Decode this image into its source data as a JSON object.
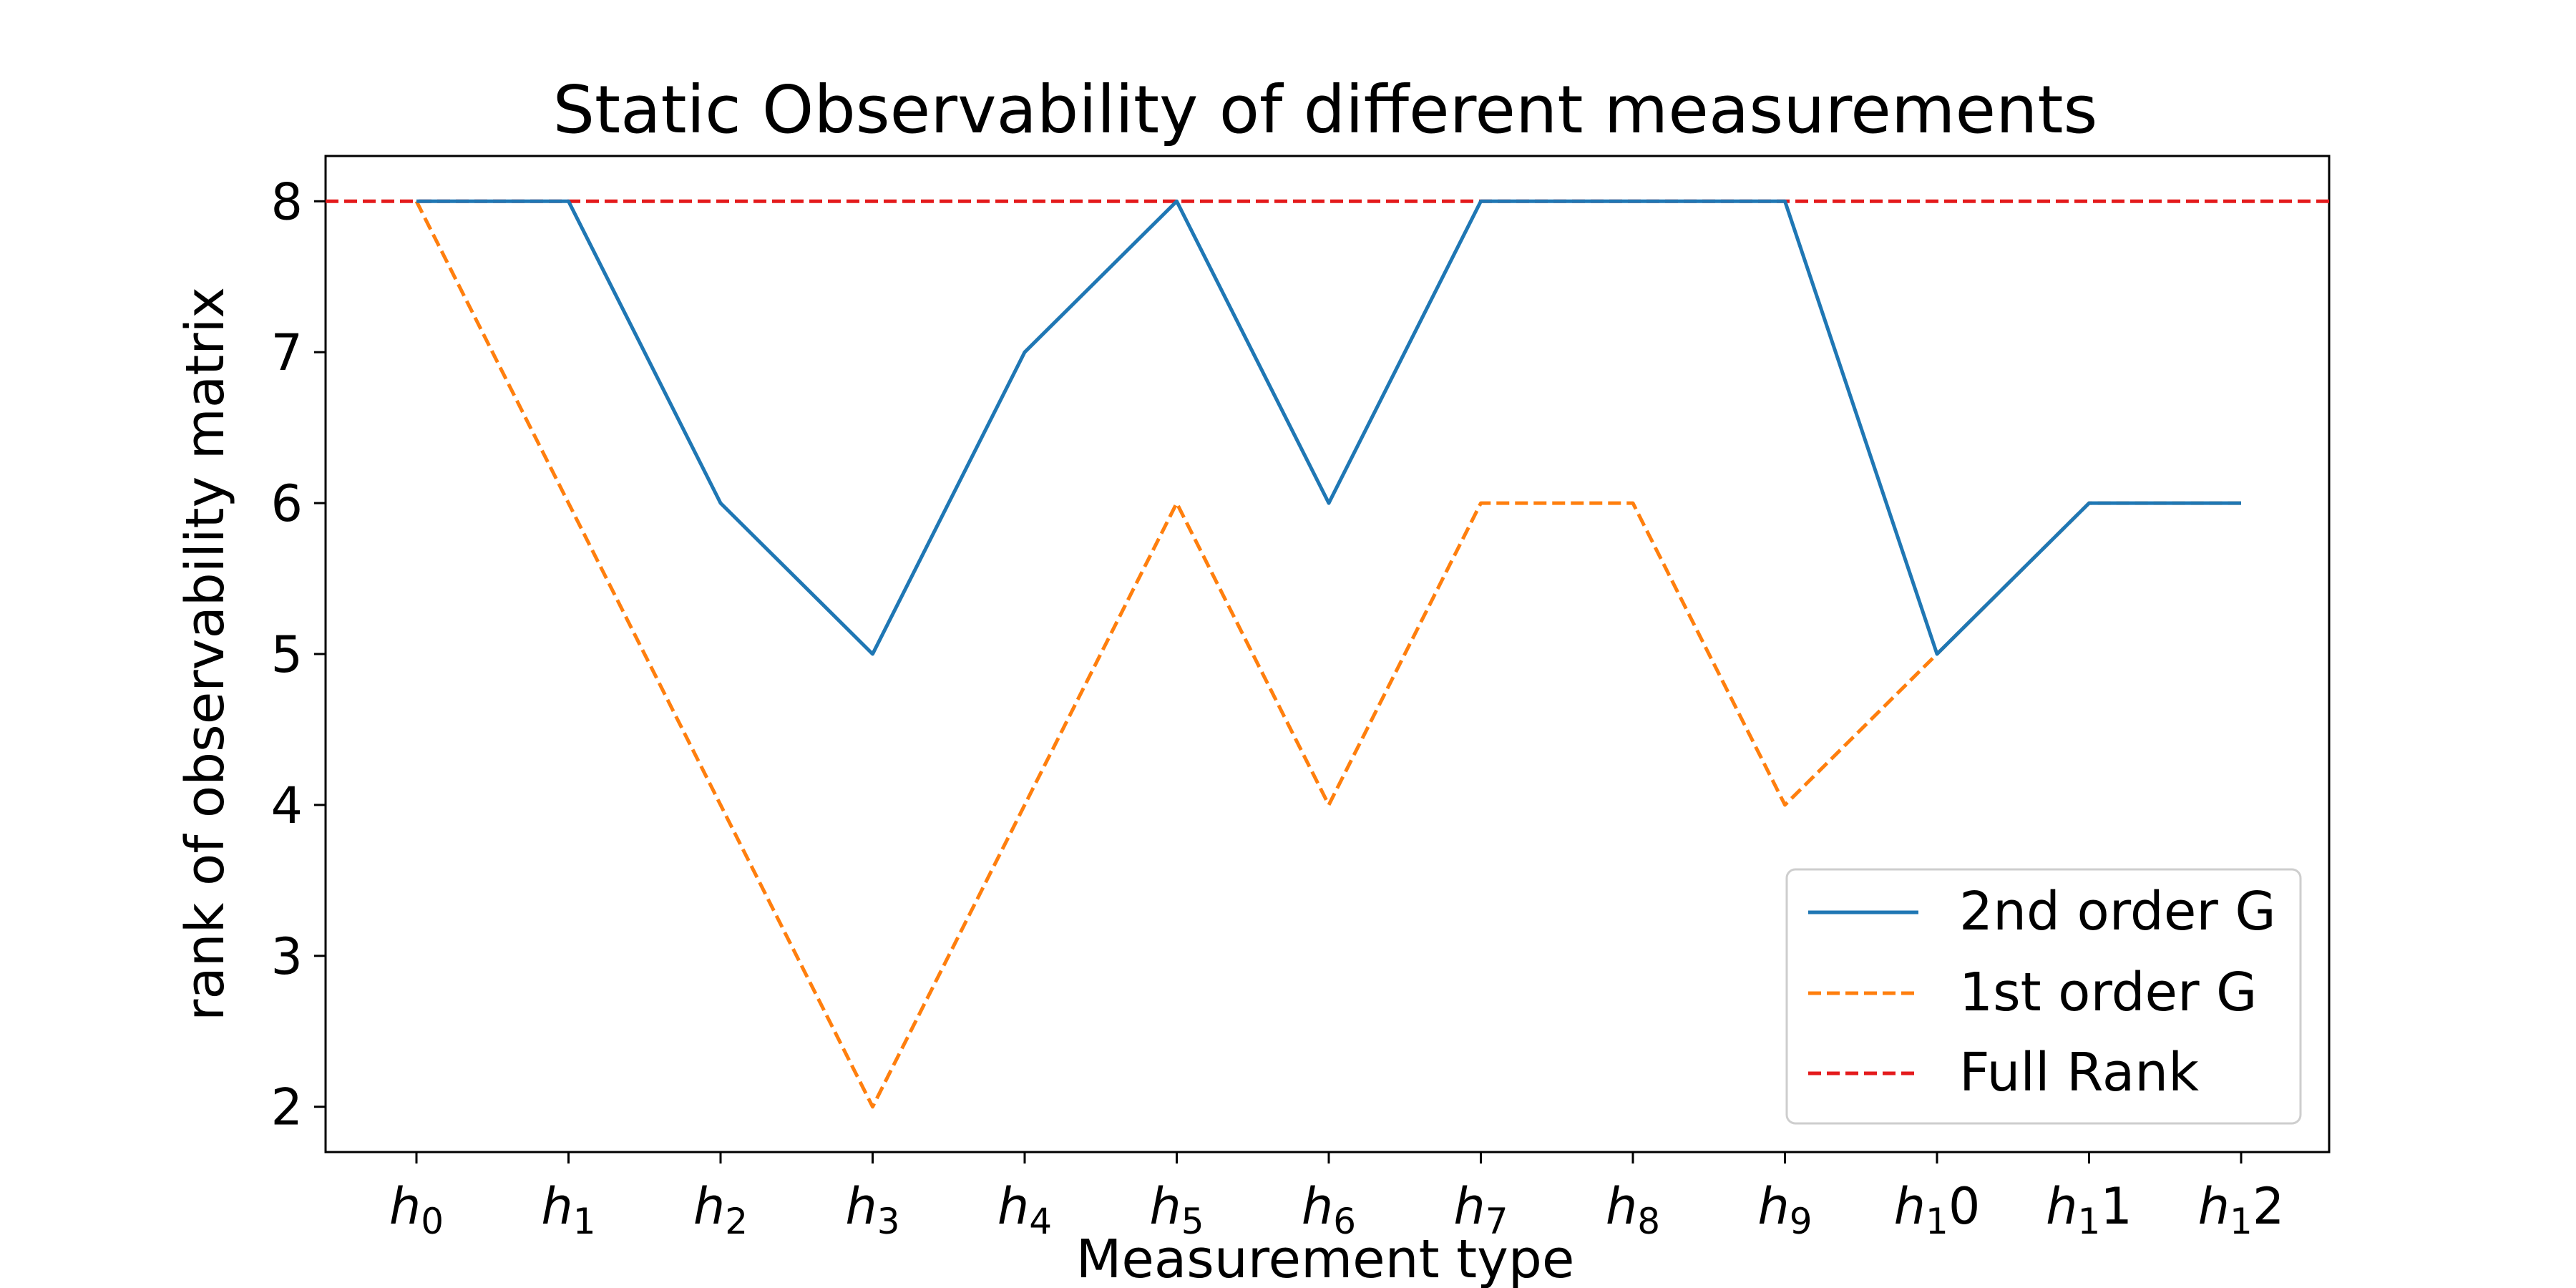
{
  "chart_data": {
    "type": "line",
    "title": "Static Observability of different measurements",
    "xlabel": "Measurement type",
    "ylabel": "rank of observability matrix",
    "x_ticks": [
      {
        "base": "h",
        "sub": "0",
        "suffix": ""
      },
      {
        "base": "h",
        "sub": "1",
        "suffix": ""
      },
      {
        "base": "h",
        "sub": "2",
        "suffix": ""
      },
      {
        "base": "h",
        "sub": "3",
        "suffix": ""
      },
      {
        "base": "h",
        "sub": "4",
        "suffix": ""
      },
      {
        "base": "h",
        "sub": "5",
        "suffix": ""
      },
      {
        "base": "h",
        "sub": "6",
        "suffix": ""
      },
      {
        "base": "h",
        "sub": "7",
        "suffix": ""
      },
      {
        "base": "h",
        "sub": "8",
        "suffix": ""
      },
      {
        "base": "h",
        "sub": "9",
        "suffix": ""
      },
      {
        "base": "h",
        "sub": "1",
        "suffix": "0"
      },
      {
        "base": "h",
        "sub": "1",
        "suffix": "1"
      },
      {
        "base": "h",
        "sub": "1",
        "suffix": "2"
      }
    ],
    "y_ticks": [
      2,
      3,
      4,
      5,
      6,
      7,
      8
    ],
    "ylim": [
      1.7,
      8.3
    ],
    "grid": false,
    "legend_position": "lower-right",
    "series": [
      {
        "name": "2nd order G",
        "color": "#1f77b4",
        "style": "solid",
        "values": [
          8,
          8,
          6,
          5,
          7,
          8,
          6,
          8,
          8,
          8,
          5,
          6,
          6
        ]
      },
      {
        "name": "1st order G",
        "color": "#ff7f0e",
        "style": "dashed",
        "values": [
          8,
          6,
          4,
          2,
          4,
          6,
          4,
          6,
          6,
          4,
          5,
          6,
          6
        ]
      }
    ],
    "reference_line": {
      "name": "Full Rank",
      "value": 8,
      "color": "#e41a1c",
      "style": "dashed"
    }
  }
}
